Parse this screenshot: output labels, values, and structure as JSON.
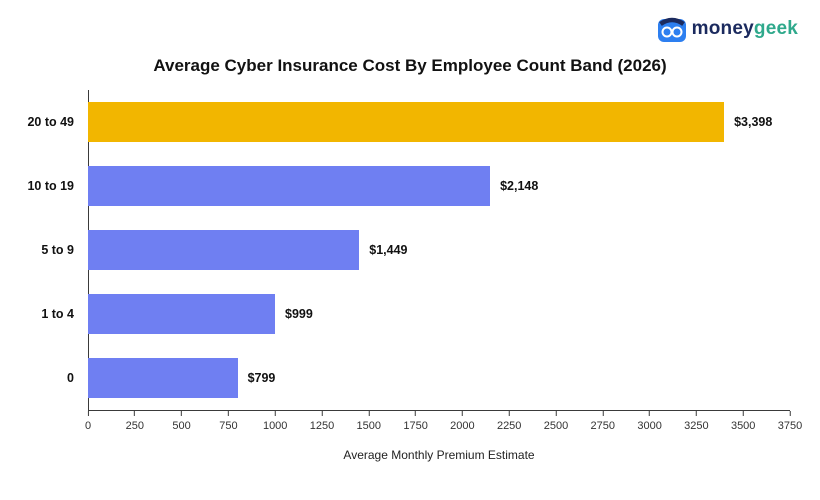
{
  "logo": {
    "brand_money": "money",
    "brand_geek": "geek"
  },
  "title": "Average Cyber Insurance Cost By Employee Count Band (2026)",
  "chart_data": {
    "type": "bar",
    "orientation": "horizontal",
    "title": "Average Cyber Insurance Cost By Employee Count Band (2026)",
    "categories": [
      "20 to 49",
      "10 to 19",
      "5 to 9",
      "1 to 4",
      "0"
    ],
    "values": [
      3398,
      2148,
      1449,
      999,
      799
    ],
    "value_labels": [
      "$3,398",
      "$2,148",
      "$1,449",
      "$999",
      "$799"
    ],
    "bar_colors": [
      "#F2B600",
      "#6F7FF2",
      "#6F7FF2",
      "#6F7FF2",
      "#6F7FF2"
    ],
    "highlight_color": "#F2B600",
    "bar_color": "#6F7FF2",
    "xlabel": "Average Monthly Premium Estimate",
    "ylabel": "",
    "xlim": [
      0,
      3750
    ],
    "x_ticks": [
      0,
      250,
      500,
      750,
      1000,
      1250,
      1500,
      1750,
      2000,
      2250,
      2500,
      2750,
      3000,
      3250,
      3500,
      3750
    ],
    "grid": false,
    "legend": "none"
  }
}
